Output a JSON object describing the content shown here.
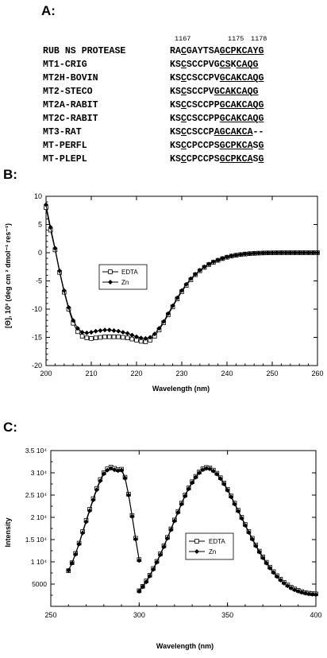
{
  "panel_a": {
    "label": "A:",
    "positions": [
      "1167",
      "1175",
      "1178"
    ],
    "rows": [
      {
        "name": "RUB NS PROTEASE",
        "seq": "RACGAYTSAGCPKCAYG",
        "underline": [
          2,
          9,
          10,
          11,
          12,
          13,
          14,
          15,
          16
        ]
      },
      {
        "name": "MT1-CRIG",
        "seq": "KSCSCCPVGCSKCAQG",
        "underline": [
          2,
          9,
          10,
          12,
          13,
          14,
          15
        ]
      },
      {
        "name": "MT2H-BOVIN",
        "seq": "KSCCSCCPVGCAKCAQG",
        "underline": [
          2,
          9,
          10,
          11,
          12,
          13,
          14,
          15,
          16
        ]
      },
      {
        "name": "MT2-STECO",
        "seq": "KSCSCCPVGCAKCAQG",
        "underline": [
          2,
          8,
          9,
          10,
          11,
          12,
          13,
          14,
          15
        ]
      },
      {
        "name": "MT2A-RABIT",
        "seq": "KSCCSCCPPGCAKCAQG",
        "underline": [
          2,
          9,
          10,
          11,
          12,
          13,
          14,
          15,
          16
        ]
      },
      {
        "name": "MT2C-RABIT",
        "seq": "KSCCSCCPPGCAKCAQG",
        "underline": [
          2,
          9,
          10,
          11,
          12,
          13,
          14,
          15,
          16
        ]
      },
      {
        "name": "MT3-RAT",
        "seq": "KSCCSCCPAGCAKCA--",
        "underline": [
          2,
          8,
          9,
          10,
          11,
          12,
          13,
          14
        ]
      },
      {
        "name": "MT-PERFL",
        "seq": "KSCCPCCPSGCPKCASG",
        "underline": [
          2,
          9,
          10,
          11,
          12,
          13,
          14,
          16
        ]
      },
      {
        "name": "MT-PLEPL",
        "seq": "KSCCPCCPSGCPKCASG",
        "underline": [
          2,
          9,
          10,
          11,
          12,
          13,
          14,
          16
        ]
      }
    ]
  },
  "panel_b": {
    "label": "B:",
    "ylabel": "[Θ], 10³  (deg cm ² dmol⁻¹ res⁻¹)",
    "xlabel": "Wavelength (nm)"
  },
  "panel_c": {
    "label": "C:",
    "ylabel": "Intensity",
    "xlabel": "Wavelength (nm)"
  },
  "chart_data": [
    {
      "type": "line",
      "xlabel": "Wavelength (nm)",
      "ylabel": "[Θ], 10³  (deg cm ² dmol⁻¹ res⁻¹)",
      "xlim": [
        200,
        260
      ],
      "ylim": [
        -20,
        10
      ],
      "x_ticks": [
        "200",
        "210",
        "220",
        "230",
        "240",
        "250",
        "260"
      ],
      "y_ticks": [
        "-20",
        "-15",
        "-10",
        "-5",
        "0",
        "5",
        "10"
      ],
      "legend_position": "center-left",
      "series": [
        {
          "name": "EDTA",
          "marker": "open-square",
          "x": [
            200,
            201,
            202,
            203,
            204,
            205,
            206,
            207,
            208,
            209,
            210,
            211,
            212,
            213,
            214,
            215,
            216,
            217,
            218,
            219,
            220,
            221,
            222,
            223,
            224,
            225,
            226,
            227,
            228,
            229,
            230,
            231,
            232,
            233,
            234,
            235,
            236,
            237,
            238,
            239,
            240,
            241,
            242,
            243,
            244,
            245,
            246,
            247,
            248,
            249,
            250,
            251,
            252,
            253,
            254,
            255,
            256,
            257,
            258,
            259,
            260
          ],
          "y": [
            8,
            4,
            0.5,
            -3.5,
            -7,
            -10,
            -12.5,
            -14,
            -14.8,
            -15.1,
            -15.2,
            -15.1,
            -15.0,
            -14.9,
            -14.9,
            -14.9,
            -14.9,
            -15.0,
            -15.1,
            -15.3,
            -15.5,
            -15.7,
            -15.8,
            -15.5,
            -14.8,
            -13.7,
            -12.4,
            -11.0,
            -9.6,
            -8.2,
            -6.9,
            -5.8,
            -4.8,
            -3.9,
            -3.2,
            -2.6,
            -2.1,
            -1.7,
            -1.35,
            -1.05,
            -0.8,
            -0.6,
            -0.45,
            -0.33,
            -0.24,
            -0.17,
            -0.12,
            -0.08,
            -0.05,
            -0.03,
            -0.02,
            -0.01,
            0,
            0,
            0,
            0,
            0,
            0,
            0,
            0,
            0
          ]
        },
        {
          "name": "Zn",
          "marker": "filled-diamond",
          "x": [
            200,
            201,
            202,
            203,
            204,
            205,
            206,
            207,
            208,
            209,
            210,
            211,
            212,
            213,
            214,
            215,
            216,
            217,
            218,
            219,
            220,
            221,
            222,
            223,
            224,
            225,
            226,
            227,
            228,
            229,
            230,
            231,
            232,
            233,
            234,
            235,
            236,
            237,
            238,
            239,
            240,
            241,
            242,
            243,
            244,
            245,
            246,
            247,
            248,
            249,
            250,
            251,
            252,
            253,
            254,
            255,
            256,
            257,
            258,
            259,
            260
          ],
          "y": [
            8.5,
            4.5,
            0.8,
            -3.2,
            -6.7,
            -9.7,
            -12.0,
            -13.4,
            -14.1,
            -14.2,
            -14.1,
            -13.9,
            -13.8,
            -13.7,
            -13.7,
            -13.8,
            -13.9,
            -14.1,
            -14.3,
            -14.6,
            -14.9,
            -15.1,
            -15.2,
            -15.0,
            -14.4,
            -13.4,
            -12.2,
            -10.8,
            -9.4,
            -8.0,
            -6.7,
            -5.6,
            -4.6,
            -3.8,
            -3.1,
            -2.5,
            -2.0,
            -1.6,
            -1.3,
            -1.0,
            -0.75,
            -0.56,
            -0.42,
            -0.31,
            -0.22,
            -0.16,
            -0.11,
            -0.07,
            -0.04,
            -0.02,
            -0.01,
            0,
            0,
            0,
            0,
            0,
            0,
            0,
            0,
            0,
            0
          ]
        }
      ]
    },
    {
      "type": "line",
      "xlabel": "Wavelength (nm)",
      "ylabel": "Intensity",
      "xlim": [
        250,
        400
      ],
      "ylim": [
        0,
        35000
      ],
      "x_ticks": [
        "250",
        "300",
        "350",
        "400"
      ],
      "y_ticks": [
        "5000",
        "1 10⁴",
        "1.5 10⁴",
        "2 10⁴",
        "2.5 10⁴",
        "3 10⁴",
        "3.5 10⁴"
      ],
      "legend_position": "center-right",
      "series": [
        {
          "name": "EDTA",
          "marker": "open-square",
          "segments": [
            {
              "x": [
                260,
                262,
                264,
                266,
                268,
                270,
                272,
                274,
                276,
                278,
                280,
                282,
                284,
                286,
                288,
                290,
                292,
                294,
                296,
                298,
                300
              ],
              "y": [
                8000,
                9800,
                11900,
                14200,
                16800,
                19300,
                21800,
                24200,
                26500,
                28500,
                30000,
                30900,
                31300,
                31000,
                30700,
                30800,
                29000,
                25200,
                20400,
                15300,
                10500
              ]
            },
            {
              "x": [
                300,
                302,
                304,
                306,
                308,
                310,
                312,
                314,
                316,
                318,
                320,
                322,
                324,
                326,
                328,
                330,
                332,
                334,
                336,
                338,
                340,
                342,
                344,
                346,
                348,
                350,
                352,
                354,
                356,
                358,
                360,
                362,
                364,
                366,
                368,
                370,
                372,
                374,
                376,
                378,
                380,
                382,
                384,
                386,
                388,
                390,
                392,
                394,
                396,
                398,
                400
              ],
              "y": [
                3500,
                4500,
                5700,
                7000,
                8500,
                10100,
                11800,
                13600,
                15500,
                17400,
                19400,
                21300,
                23200,
                25000,
                26600,
                28000,
                29200,
                30200,
                30900,
                31200,
                31100,
                30600,
                29900,
                28900,
                27700,
                26300,
                24800,
                23200,
                21600,
                20000,
                18400,
                16800,
                15300,
                13800,
                12400,
                11100,
                9900,
                8800,
                7800,
                6900,
                6100,
                5400,
                4800,
                4300,
                3900,
                3600,
                3300,
                3100,
                2950,
                2850,
                2800
              ]
            }
          ]
        },
        {
          "name": "Zn",
          "marker": "filled-diamond",
          "segments": [
            {
              "x": [
                260,
                262,
                264,
                266,
                268,
                270,
                272,
                274,
                276,
                278,
                280,
                282,
                284,
                286,
                288,
                290,
                292,
                294,
                296,
                298,
                300
              ],
              "y": [
                8100,
                9700,
                11700,
                14000,
                16500,
                19000,
                21500,
                23900,
                26200,
                28200,
                29800,
                30600,
                31000,
                30700,
                30500,
                30600,
                28800,
                25000,
                20200,
                15100,
                10300
              ]
            },
            {
              "x": [
                300,
                302,
                304,
                306,
                308,
                310,
                312,
                314,
                316,
                318,
                320,
                322,
                324,
                326,
                328,
                330,
                332,
                334,
                336,
                338,
                340,
                342,
                344,
                346,
                348,
                350,
                352,
                354,
                356,
                358,
                360,
                362,
                364,
                366,
                368,
                370,
                372,
                374,
                376,
                378,
                380,
                382,
                384,
                386,
                388,
                390,
                392,
                394,
                396,
                398,
                400
              ],
              "y": [
                3400,
                4400,
                5500,
                6800,
                8300,
                9900,
                11600,
                13400,
                15300,
                17200,
                19200,
                21100,
                23000,
                24800,
                26400,
                27800,
                29000,
                30000,
                30700,
                31000,
                30900,
                30400,
                29700,
                28700,
                27500,
                26100,
                24600,
                23000,
                21400,
                19800,
                18200,
                16600,
                15100,
                13600,
                12200,
                10900,
                9700,
                8600,
                7600,
                6700,
                5900,
                5200,
                4600,
                4100,
                3700,
                3400,
                3150,
                2950,
                2800,
                2700,
                2650
              ]
            }
          ]
        }
      ]
    }
  ]
}
